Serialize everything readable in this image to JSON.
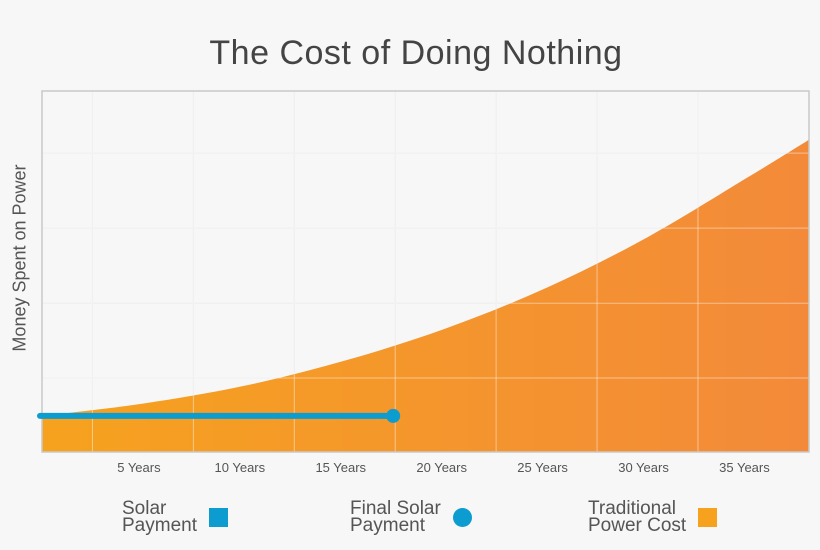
{
  "chart_data": {
    "type": "area",
    "title": "The Cost of Doing Nothing",
    "xlabel": "",
    "ylabel": "Money Spent on Power",
    "x_ticks": [
      {
        "value": 5,
        "label": "5 Years"
      },
      {
        "value": 10,
        "label": "10 Years"
      },
      {
        "value": 15,
        "label": "15 Years"
      },
      {
        "value": 20,
        "label": "20 Years"
      },
      {
        "value": 25,
        "label": "25 Years"
      },
      {
        "value": 30,
        "label": "30 Years"
      },
      {
        "value": 35,
        "label": "35 Years"
      }
    ],
    "xlim": [
      0,
      38
    ],
    "ylim": [
      0,
      100
    ],
    "grid": true,
    "legend_position": "bottom",
    "series": [
      {
        "name": "Traditional Power Cost",
        "type": "area",
        "color": "#f6a21e",
        "color_end": "#f38a3a",
        "x": [
          0,
          5,
          10,
          15,
          20,
          25,
          30,
          35,
          38
        ],
        "y": [
          10.0,
          13.4,
          18.3,
          25.3,
          34.2,
          45.5,
          59.5,
          76.2,
          86.5
        ]
      },
      {
        "name": "Solar Payment",
        "type": "line",
        "color": "#0c9ccf",
        "x": [
          0,
          17.4
        ],
        "y": [
          10.0,
          10.0
        ],
        "end_marker": "circle"
      }
    ]
  },
  "legend": {
    "items": [
      {
        "line1": "Solar",
        "line2": "Payment",
        "shape": "square",
        "color": "#0c9ccf"
      },
      {
        "line1": "Final Solar",
        "line2": "Payment",
        "shape": "circle",
        "color": "#0c9ccf"
      },
      {
        "line1": "Traditional",
        "line2": "Power Cost",
        "shape": "square",
        "color": "#f6a21e"
      }
    ]
  }
}
